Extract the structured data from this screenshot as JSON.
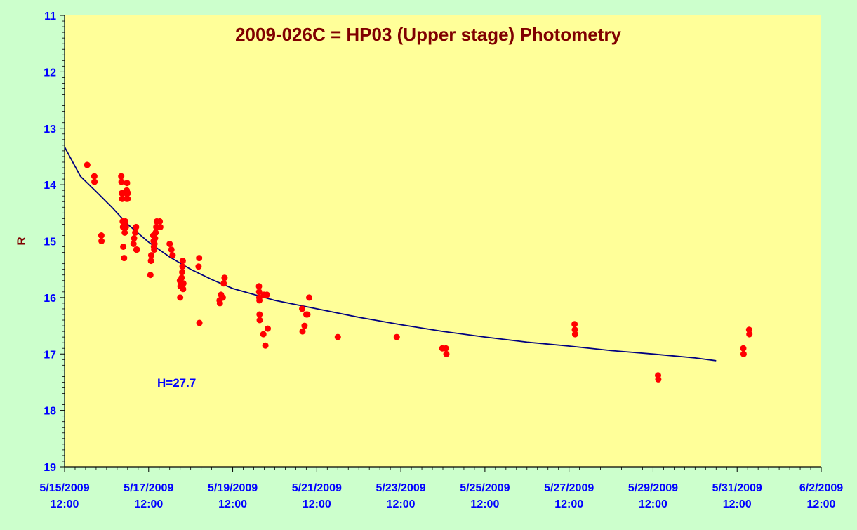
{
  "chart_data": {
    "type": "scatter",
    "title": "2009-026C = HP03 (Upper stage) Photometry",
    "ylabel": "R",
    "xlabel": "",
    "ylim": [
      19,
      11
    ],
    "y_inverted": true,
    "y_ticks": [
      "11",
      "12",
      "13",
      "14",
      "15",
      "16",
      "17",
      "18",
      "19"
    ],
    "xlim": [
      "2009-05-15T12:00",
      "2009-06-02T12:00"
    ],
    "x_ticks": [
      {
        "date": "5/15/2009",
        "time": "12:00"
      },
      {
        "date": "5/17/2009",
        "time": "12:00"
      },
      {
        "date": "5/19/2009",
        "time": "12:00"
      },
      {
        "date": "5/21/2009",
        "time": "12:00"
      },
      {
        "date": "5/23/2009",
        "time": "12:00"
      },
      {
        "date": "5/25/2009",
        "time": "12:00"
      },
      {
        "date": "5/27/2009",
        "time": "12:00"
      },
      {
        "date": "5/29/2009",
        "time": "12:00"
      },
      {
        "date": "5/31/2009",
        "time": "12:00"
      },
      {
        "date": "6/2/2009",
        "time": "12:00"
      }
    ],
    "grid": false,
    "annotation": "H=27.7",
    "colors": {
      "plot_area": "#ffff99",
      "background": "#ccffcc",
      "points": "#ff0000",
      "fit": "#000080",
      "title": "#800000",
      "axis_labels": "#0000ff",
      "ylabel": "#800000"
    },
    "series": [
      {
        "points": [
          [
            "2009-05-16T00:50",
            13.65
          ],
          [
            "2009-05-16T01:00",
            13.65
          ],
          [
            "2009-05-16T05:00",
            13.85
          ],
          [
            "2009-05-16T05:05",
            13.95
          ],
          [
            "2009-05-16T09:00",
            14.9
          ],
          [
            "2009-05-16T09:05",
            15.0
          ],
          [
            "2009-05-16T20:20",
            13.85
          ],
          [
            "2009-05-16T20:30",
            13.95
          ],
          [
            "2009-05-16T20:40",
            14.15
          ],
          [
            "2009-05-16T20:50",
            14.25
          ],
          [
            "2009-05-16T21:00",
            14.15
          ],
          [
            "2009-05-16T21:00",
            14.25
          ],
          [
            "2009-05-16T21:10",
            14.65
          ],
          [
            "2009-05-16T21:20",
            14.75
          ],
          [
            "2009-05-16T21:30",
            15.1
          ],
          [
            "2009-05-16T22:00",
            15.3
          ],
          [
            "2009-05-16T22:10",
            14.7
          ],
          [
            "2009-05-16T22:20",
            14.85
          ],
          [
            "2009-05-16T22:40",
            14.65
          ],
          [
            "2009-05-16T23:00",
            14.75
          ],
          [
            "2009-05-16T23:10",
            14.15
          ],
          [
            "2009-05-16T23:20",
            14.25
          ],
          [
            "2009-05-16T23:30",
            14.1
          ],
          [
            "2009-05-16T23:40",
            13.97
          ],
          [
            "2009-05-17T00:00",
            14.25
          ],
          [
            "2009-05-17T00:10",
            14.15
          ],
          [
            "2009-05-17T03:20",
            15.05
          ],
          [
            "2009-05-17T03:40",
            14.95
          ],
          [
            "2009-05-17T04:20",
            14.85
          ],
          [
            "2009-05-17T04:50",
            14.75
          ],
          [
            "2009-05-17T05:00",
            15.15
          ],
          [
            "2009-05-17T05:20",
            15.15
          ],
          [
            "2009-05-17T13:20",
            15.35
          ],
          [
            "2009-05-17T13:30",
            15.25
          ],
          [
            "2009-05-17T13:00",
            15.6
          ],
          [
            "2009-05-17T14:40",
            14.9
          ],
          [
            "2009-05-17T14:50",
            15.0
          ],
          [
            "2009-05-17T15:00",
            15.1
          ],
          [
            "2009-05-17T15:10",
            15.15
          ],
          [
            "2009-05-17T15:20",
            15.05
          ],
          [
            "2009-05-17T15:40",
            14.95
          ],
          [
            "2009-05-17T16:00",
            14.85
          ],
          [
            "2009-05-17T16:20",
            14.75
          ],
          [
            "2009-05-17T16:40",
            14.65
          ],
          [
            "2009-05-17T18:20",
            14.65
          ],
          [
            "2009-05-17T18:40",
            14.75
          ],
          [
            "2009-05-18T00:00",
            15.05
          ],
          [
            "2009-05-18T01:00",
            15.15
          ],
          [
            "2009-05-18T01:40",
            15.25
          ],
          [
            "2009-05-18T05:50",
            15.7
          ],
          [
            "2009-05-18T06:00",
            16.0
          ],
          [
            "2009-05-18T06:10",
            15.8
          ],
          [
            "2009-05-18T06:30",
            15.75
          ],
          [
            "2009-05-18T06:50",
            15.65
          ],
          [
            "2009-05-18T07:10",
            15.55
          ],
          [
            "2009-05-18T07:20",
            15.45
          ],
          [
            "2009-05-18T07:30",
            15.35
          ],
          [
            "2009-05-18T07:40",
            15.85
          ],
          [
            "2009-05-18T07:50",
            15.75
          ],
          [
            "2009-05-18T16:30",
            15.45
          ],
          [
            "2009-05-18T16:50",
            15.3
          ],
          [
            "2009-05-18T17:00",
            16.45
          ],
          [
            "2009-05-19T04:30",
            16.05
          ],
          [
            "2009-05-19T04:40",
            16.1
          ],
          [
            "2009-05-19T05:20",
            15.95
          ],
          [
            "2009-05-19T06:20",
            16.0
          ],
          [
            "2009-05-19T06:50",
            15.75
          ],
          [
            "2009-05-19T07:20",
            15.65
          ],
          [
            "2009-05-20T03:00",
            15.8
          ],
          [
            "2009-05-20T03:05",
            15.9
          ],
          [
            "2009-05-20T03:10",
            16.0
          ],
          [
            "2009-05-20T03:15",
            16.05
          ],
          [
            "2009-05-20T03:20",
            16.3
          ],
          [
            "2009-05-20T03:25",
            16.4
          ],
          [
            "2009-05-20T05:30",
            16.65
          ],
          [
            "2009-05-20T05:50",
            15.95
          ],
          [
            "2009-05-20T06:40",
            16.85
          ],
          [
            "2009-05-20T07:30",
            15.95
          ],
          [
            "2009-05-20T08:00",
            16.55
          ],
          [
            "2009-05-21T03:40",
            16.2
          ],
          [
            "2009-05-21T03:50",
            16.6
          ],
          [
            "2009-05-21T05:00",
            16.5
          ],
          [
            "2009-05-21T06:00",
            16.3
          ],
          [
            "2009-05-21T06:40",
            16.3
          ],
          [
            "2009-05-21T07:40",
            16.0
          ],
          [
            "2009-05-22T00:00",
            16.7
          ],
          [
            "2009-05-23T09:40",
            16.7
          ],
          [
            "2009-05-24T11:40",
            16.9
          ],
          [
            "2009-05-24T13:40",
            16.9
          ],
          [
            "2009-05-24T14:00",
            17.0
          ],
          [
            "2009-05-27T15:10",
            16.47
          ],
          [
            "2009-05-27T15:20",
            16.57
          ],
          [
            "2009-05-27T15:30",
            16.65
          ],
          [
            "2009-05-29T14:50",
            17.38
          ],
          [
            "2009-05-29T15:00",
            17.45
          ],
          [
            "2009-05-31T15:30",
            16.9
          ],
          [
            "2009-05-31T15:40",
            17.0
          ],
          [
            "2009-05-31T18:50",
            16.57
          ],
          [
            "2009-05-31T19:00",
            16.65
          ]
        ]
      },
      {
        "type": "line",
        "points": [
          [
            "2009-05-15T12:00",
            13.33
          ],
          [
            "2009-05-15T21:00",
            13.85
          ],
          [
            "2009-05-16T06:00",
            14.12
          ],
          [
            "2009-05-16T15:00",
            14.4
          ],
          [
            "2009-05-17T00:00",
            14.7
          ],
          [
            "2009-05-17T12:00",
            15.02
          ],
          [
            "2009-05-18T00:00",
            15.28
          ],
          [
            "2009-05-18T12:00",
            15.5
          ],
          [
            "2009-05-19T00:00",
            15.68
          ],
          [
            "2009-05-19T12:00",
            15.84
          ],
          [
            "2009-05-20T12:00",
            16.05
          ],
          [
            "2009-05-21T12:00",
            16.2
          ],
          [
            "2009-05-22T12:00",
            16.35
          ],
          [
            "2009-05-23T12:00",
            16.48
          ],
          [
            "2009-05-24T12:00",
            16.6
          ],
          [
            "2009-05-25T12:00",
            16.7
          ],
          [
            "2009-05-26T12:00",
            16.79
          ],
          [
            "2009-05-27T12:00",
            16.86
          ],
          [
            "2009-05-28T12:00",
            16.94
          ],
          [
            "2009-05-29T12:00",
            17.0
          ],
          [
            "2009-05-30T12:00",
            17.07
          ],
          [
            "2009-05-31T00:00",
            17.12
          ]
        ]
      }
    ]
  }
}
